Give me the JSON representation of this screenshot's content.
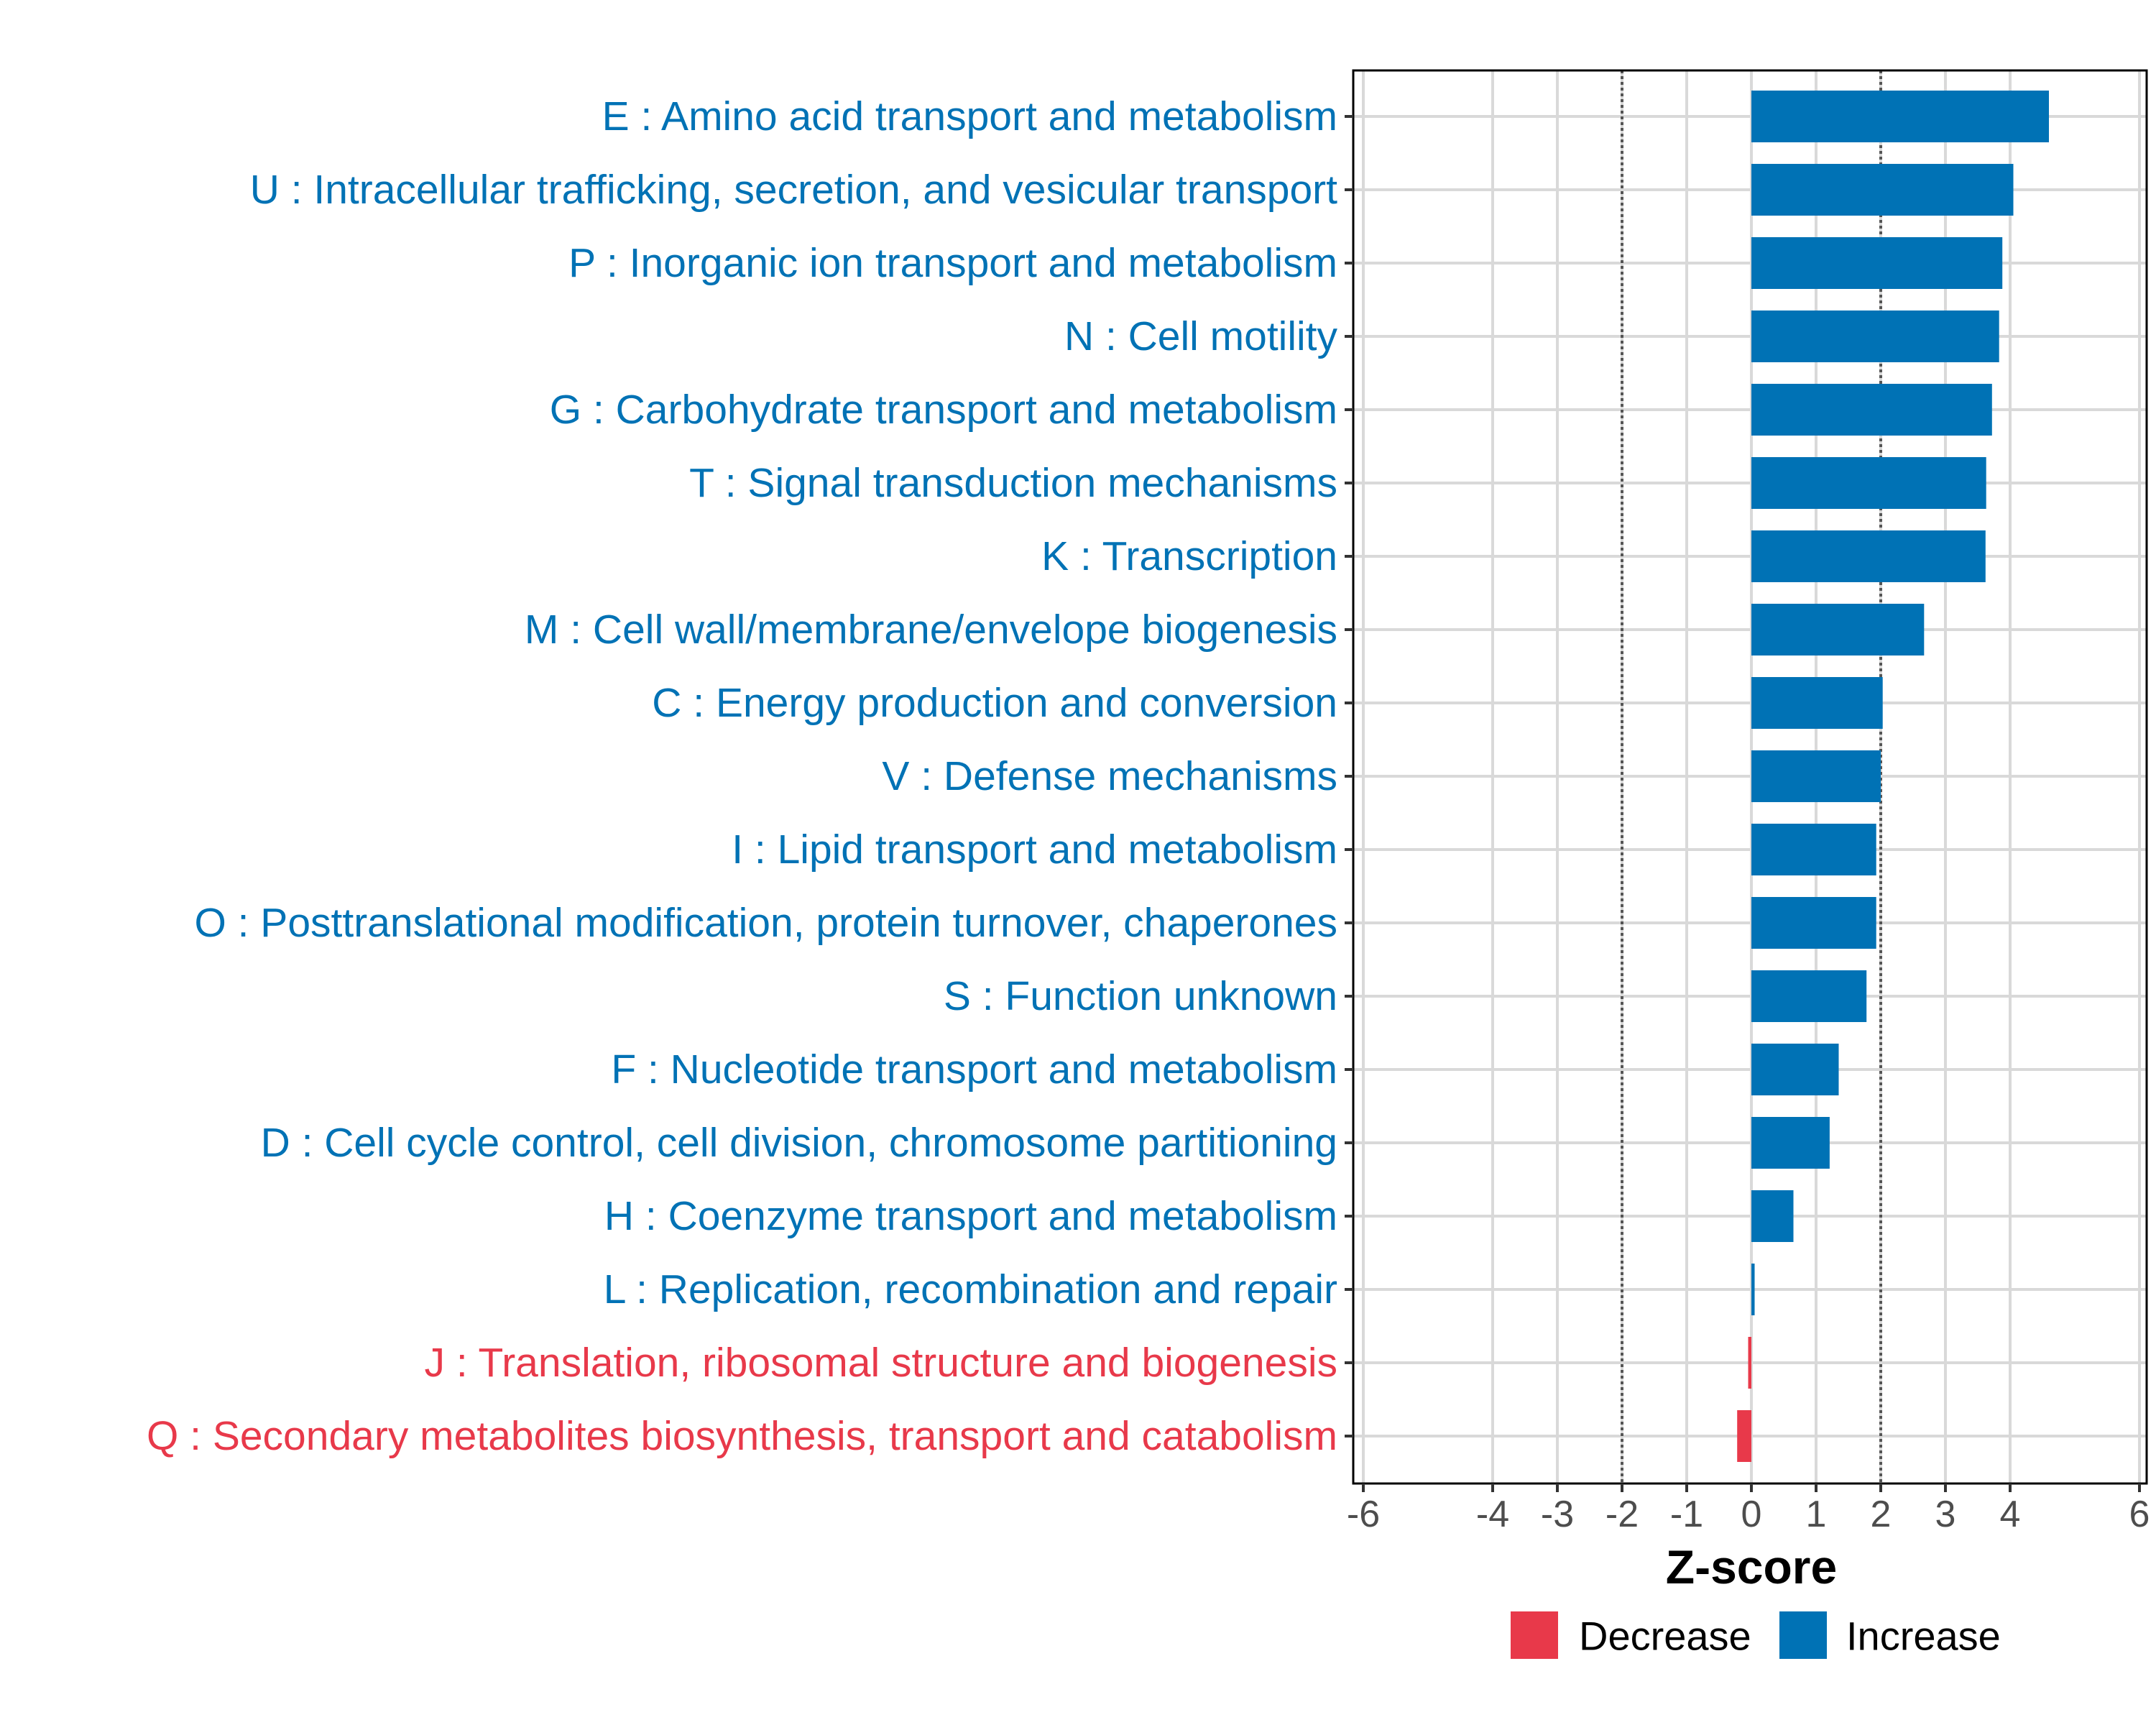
{
  "chart_data": {
    "type": "bar",
    "orientation": "horizontal",
    "xlabel": "Z-score",
    "ylabel": "",
    "xlim": [
      -6.2,
      6.2
    ],
    "x_ticks": [
      -6,
      -4,
      -3,
      -2,
      -1,
      0,
      1,
      2,
      3,
      4,
      6
    ],
    "x_tick_labels": [
      "-6",
      "-4",
      "-3",
      "-2",
      "-1",
      "0",
      "1",
      "2",
      "3",
      "4",
      "6"
    ],
    "reference_lines": [
      -2,
      2
    ],
    "grid": true,
    "categories": [
      "E : Amino acid transport and metabolism",
      "U : Intracellular trafficking, secretion, and vesicular transport",
      "P : Inorganic ion transport and metabolism",
      "N : Cell motility",
      "G : Carbohydrate transport and metabolism",
      "T : Signal transduction mechanisms",
      "K : Transcription",
      "M : Cell wall/membrane/envelope biogenesis",
      "C : Energy production and conversion",
      "V : Defense mechanisms",
      "I : Lipid transport and metabolism",
      "O : Posttranslational modification, protein turnover, chaperones",
      "S : Function unknown",
      "F : Nucleotide transport and metabolism",
      "D : Cell cycle control, cell division, chromosome partitioning",
      "H : Coenzyme transport and metabolism",
      "L : Replication, recombination and repair",
      "J : Translation, ribosomal structure and biogenesis",
      "Q : Secondary metabolites biosynthesis, transport and catabolism"
    ],
    "values": [
      4.6,
      4.05,
      3.88,
      3.83,
      3.72,
      3.63,
      3.62,
      2.67,
      2.03,
      2.0,
      1.93,
      1.93,
      1.78,
      1.35,
      1.21,
      0.65,
      0.05,
      -0.05,
      -0.22
    ],
    "groups": [
      "Increase",
      "Increase",
      "Increase",
      "Increase",
      "Increase",
      "Increase",
      "Increase",
      "Increase",
      "Increase",
      "Increase",
      "Increase",
      "Increase",
      "Increase",
      "Increase",
      "Increase",
      "Increase",
      "Increase",
      "Decrease",
      "Decrease"
    ],
    "legend": {
      "position": "bottom",
      "entries": [
        {
          "label": "Decrease",
          "color": "#e8394a"
        },
        {
          "label": "Increase",
          "color": "#0072b5"
        }
      ]
    }
  }
}
